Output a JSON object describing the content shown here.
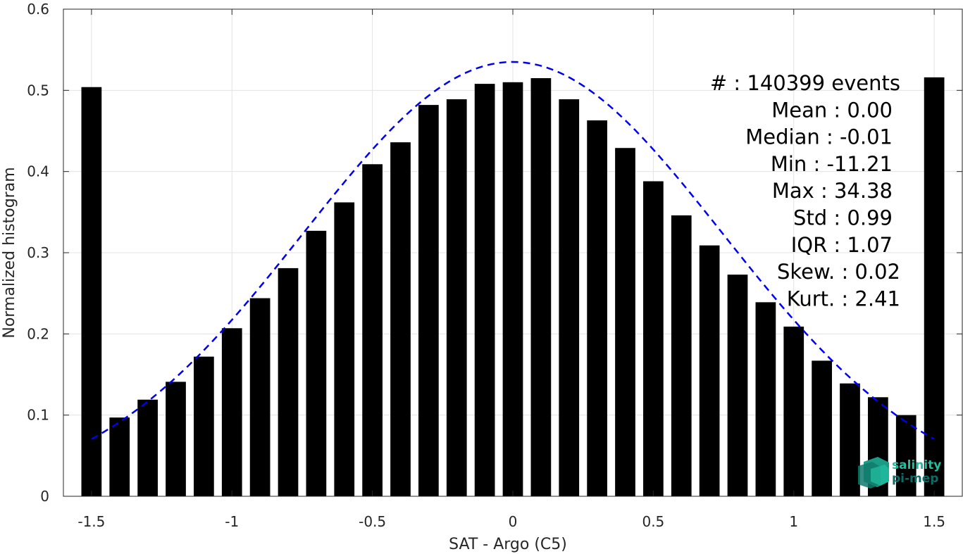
{
  "chart_data": {
    "type": "bar",
    "title": "",
    "xlabel": "SAT - Argo (C5)",
    "ylabel": "Normalized histogram",
    "xlim": [
      -1.6,
      1.6
    ],
    "ylim": [
      0,
      0.6
    ],
    "grid": true,
    "xticks": [
      -1.5,
      -1,
      -0.5,
      0,
      0.5,
      1,
      1.5
    ],
    "xtick_labels": [
      "-1.5",
      "-1",
      "-0.5",
      "0",
      "0.5",
      "1",
      "1.5"
    ],
    "yticks": [
      0,
      0.1,
      0.2,
      0.3,
      0.4,
      0.5,
      0.6
    ],
    "ytick_labels": [
      "0",
      "0.1",
      "0.2",
      "0.3",
      "0.4",
      "0.5",
      "0.6"
    ],
    "bar_color": "#000000",
    "x": [
      -1.5,
      -1.4,
      -1.3,
      -1.2,
      -1.1,
      -1.0,
      -0.9,
      -0.8,
      -0.7,
      -0.6,
      -0.5,
      -0.4,
      -0.3,
      -0.2,
      -0.1,
      0.0,
      0.1,
      0.2,
      0.3,
      0.4,
      0.5,
      0.6,
      0.7,
      0.8,
      0.9,
      1.0,
      1.1,
      1.2,
      1.3,
      1.4,
      1.5
    ],
    "values": [
      0.504,
      0.097,
      0.119,
      0.141,
      0.172,
      0.207,
      0.244,
      0.281,
      0.327,
      0.362,
      0.409,
      0.436,
      0.482,
      0.489,
      0.508,
      0.51,
      0.515,
      0.489,
      0.463,
      0.429,
      0.388,
      0.346,
      0.309,
      0.273,
      0.239,
      0.209,
      0.167,
      0.139,
      0.122,
      0.1,
      0.516
    ],
    "fit_curve": {
      "style": "dashed",
      "color": "#0000ee",
      "mean": 0.0,
      "std": 0.745,
      "peak": 0.535,
      "x_range": [
        -1.5,
        1.5
      ]
    }
  },
  "stats": [
    {
      "label": "#  ",
      "value": ": 140399 events"
    },
    {
      "label": "Mean ",
      "value": ": 0.00"
    },
    {
      "label": "Median ",
      "value": ": -0.01"
    },
    {
      "label": "Min ",
      "value": ": -11.21"
    },
    {
      "label": "Max ",
      "value": ": 34.38"
    },
    {
      "label": "Std ",
      "value": ": 0.99"
    },
    {
      "label": "IQR ",
      "value": ": 1.07"
    },
    {
      "label": "Skew. ",
      "value": ": 0.02"
    },
    {
      "label": "Kurt. ",
      "value": ": 2.41"
    }
  ],
  "logo": {
    "line1": "salinity",
    "line2": "pi-mep",
    "color1": "#1fbf9f",
    "color2": "#0f6b66"
  }
}
